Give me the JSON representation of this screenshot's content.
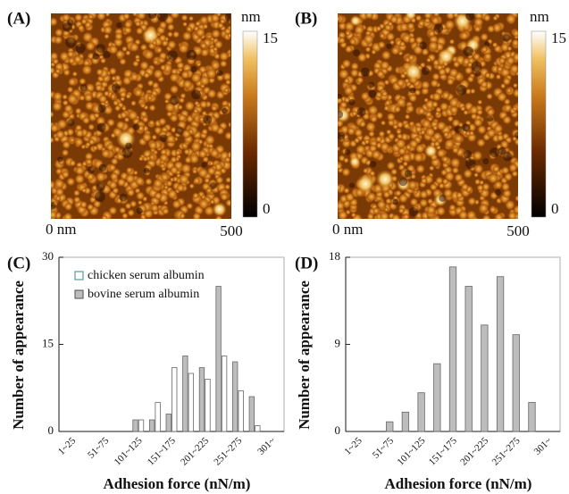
{
  "panels": [
    {
      "label": "(A)",
      "colorbar": {
        "unit": "nm",
        "max": 15,
        "min": 0
      },
      "x_start": "0 nm",
      "x_end": "500"
    },
    {
      "label": "(B)",
      "colorbar": {
        "unit": "nm",
        "max": 15,
        "min": 0
      },
      "x_start": "0 nm",
      "x_end": "500"
    }
  ],
  "chart_data": [
    {
      "type": "bar",
      "panel_label": "(C)",
      "categories": [
        "1~25",
        null,
        "51~75",
        null,
        "101~125",
        null,
        "151~175",
        null,
        "201~225",
        null,
        "251~275",
        null,
        "301~"
      ],
      "series": [
        {
          "name": "chicken serum albumin",
          "color": "#ffffff",
          "values": [
            0,
            0,
            0,
            0,
            2,
            5,
            11,
            10,
            9,
            13,
            7,
            1,
            0
          ]
        },
        {
          "name": "bovine serum albumin",
          "color": "#bdbdbd",
          "values": [
            0,
            0,
            0,
            0,
            2,
            2,
            3,
            13,
            11,
            25,
            12,
            6,
            0
          ]
        }
      ],
      "ylim": [
        0,
        30
      ],
      "yticks": [
        0,
        15,
        30
      ],
      "xlabel": "Adhesion force (nN/m)",
      "ylabel": "Number of appearance",
      "legend": "upper left"
    },
    {
      "type": "bar",
      "panel_label": "(D)",
      "categories": [
        "1~25",
        null,
        "51~75",
        null,
        "101~125",
        null,
        "151~175",
        null,
        "201~225",
        null,
        "251~275",
        null,
        "301~"
      ],
      "series": [
        {
          "color": "#bdbdbd",
          "values": [
            0,
            0,
            1,
            2,
            4,
            7,
            17,
            15,
            11,
            16,
            10,
            3,
            0
          ]
        }
      ],
      "ylim": [
        0,
        18
      ],
      "yticks": [
        0,
        9,
        18
      ],
      "xlabel": "Adhesion force (nN/m)",
      "ylabel": "Number of appearance"
    }
  ]
}
